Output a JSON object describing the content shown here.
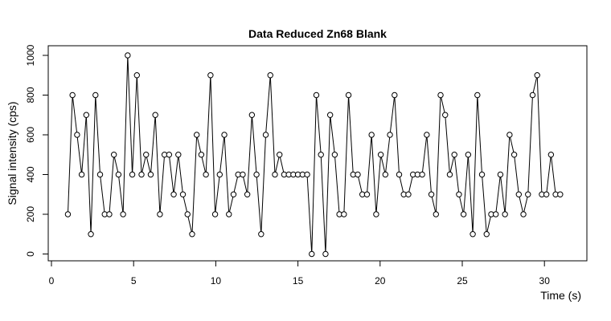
{
  "chart_data": {
    "type": "line",
    "title": "Data Reduced Zn68 Blank",
    "xlabel": "Time (s)",
    "ylabel": "Signal intensity (cps)",
    "xlim": [
      0,
      32
    ],
    "ylim": [
      0,
      1000
    ],
    "x_ticks": [
      0,
      5,
      10,
      15,
      20,
      25,
      30
    ],
    "y_ticks": [
      0,
      200,
      400,
      600,
      800,
      1000
    ],
    "grid": false,
    "markers": "open-circle",
    "series": [
      {
        "x": [
          1.0,
          1.28,
          1.56,
          1.84,
          2.12,
          2.4,
          2.68,
          2.96,
          3.24,
          3.52,
          3.8,
          4.08,
          4.36,
          4.64,
          4.92,
          5.2,
          5.48,
          5.76,
          6.04,
          6.32,
          6.6,
          6.88,
          7.16,
          7.44,
          7.72,
          8.0,
          8.28,
          8.56,
          8.84,
          9.12,
          9.4,
          9.68,
          9.96,
          10.24,
          10.52,
          10.8,
          11.08,
          11.36,
          11.64,
          11.92,
          12.2,
          12.48,
          12.76,
          13.04,
          13.32,
          13.6,
          13.88,
          14.16,
          14.44,
          14.72,
          15.0,
          15.28,
          15.56,
          15.84,
          16.12,
          16.4,
          16.68,
          16.96,
          17.24,
          17.52,
          17.8,
          18.08,
          18.36,
          18.64,
          18.92,
          19.2,
          19.48,
          19.76,
          20.04,
          20.32,
          20.6,
          20.88,
          21.16,
          21.44,
          21.72,
          22.0,
          22.28,
          22.56,
          22.84,
          23.12,
          23.4,
          23.68,
          23.96,
          24.24,
          24.52,
          24.8,
          25.08,
          25.36,
          25.64,
          25.92,
          26.2,
          26.48,
          26.76,
          27.04,
          27.32,
          27.6,
          27.88,
          28.16,
          28.44,
          28.72,
          29.0,
          29.28,
          29.56,
          29.84,
          30.12,
          30.4,
          30.68,
          30.96
        ],
        "y": [
          200,
          800,
          600,
          400,
          700,
          100,
          800,
          400,
          200,
          200,
          500,
          400,
          200,
          1000,
          400,
          900,
          400,
          500,
          400,
          700,
          200,
          500,
          500,
          300,
          500,
          300,
          200,
          100,
          600,
          500,
          400,
          900,
          200,
          400,
          600,
          200,
          300,
          400,
          400,
          300,
          700,
          400,
          100,
          600,
          900,
          400,
          500,
          400,
          400,
          400,
          400,
          400,
          400,
          0,
          800,
          500,
          0,
          700,
          500,
          200,
          200,
          800,
          400,
          400,
          300,
          300,
          600,
          200,
          500,
          400,
          600,
          800,
          400,
          300,
          300,
          400,
          400,
          400,
          600,
          300,
          200,
          800,
          700,
          400,
          500,
          300,
          200,
          500,
          100,
          800,
          400,
          100,
          200,
          200,
          400,
          200,
          600,
          500,
          300,
          200,
          300,
          800,
          900,
          300,
          300,
          500,
          300,
          300
        ]
      }
    ]
  }
}
